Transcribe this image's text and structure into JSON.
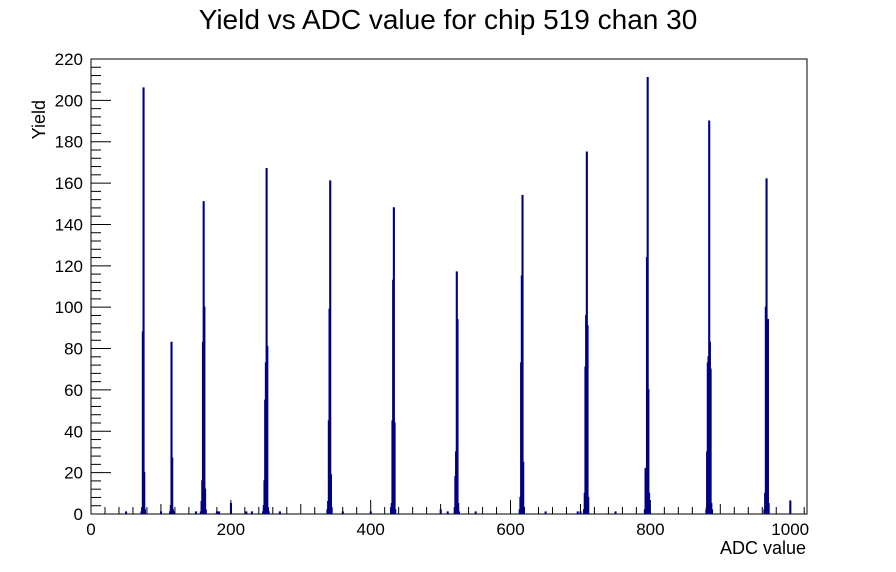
{
  "chart_data": {
    "type": "histogram",
    "title": "Yield vs ADC value for chip 519 chan 30",
    "xlabel": "ADC value",
    "ylabel": "Yield",
    "xlim": [
      0,
      1024
    ],
    "ylim": [
      0,
      220
    ],
    "x_ticks": [
      0,
      200,
      400,
      600,
      800,
      1000
    ],
    "y_ticks": [
      0,
      20,
      40,
      60,
      80,
      100,
      120,
      140,
      160,
      180,
      200,
      220
    ],
    "grid": false,
    "legend": "none",
    "line_color": "#000080",
    "bins": [
      {
        "x": 50,
        "y": 1
      },
      {
        "x": 72,
        "y": 1
      },
      {
        "x": 73,
        "y": 3
      },
      {
        "x": 74,
        "y": 88
      },
      {
        "x": 75,
        "y": 206
      },
      {
        "x": 76,
        "y": 20
      },
      {
        "x": 77,
        "y": 2
      },
      {
        "x": 100,
        "y": 1
      },
      {
        "x": 113,
        "y": 1
      },
      {
        "x": 114,
        "y": 4
      },
      {
        "x": 115,
        "y": 83
      },
      {
        "x": 116,
        "y": 27
      },
      {
        "x": 117,
        "y": 2
      },
      {
        "x": 118,
        "y": 1
      },
      {
        "x": 150,
        "y": 1
      },
      {
        "x": 157,
        "y": 1
      },
      {
        "x": 158,
        "y": 6
      },
      {
        "x": 159,
        "y": 16
      },
      {
        "x": 160,
        "y": 83
      },
      {
        "x": 161,
        "y": 151
      },
      {
        "x": 162,
        "y": 100
      },
      {
        "x": 163,
        "y": 12
      },
      {
        "x": 164,
        "y": 2
      },
      {
        "x": 180,
        "y": 1
      },
      {
        "x": 183,
        "y": 1
      },
      {
        "x": 200,
        "y": 5
      },
      {
        "x": 222,
        "y": 1
      },
      {
        "x": 230,
        "y": 1
      },
      {
        "x": 246,
        "y": 1
      },
      {
        "x": 247,
        "y": 4
      },
      {
        "x": 248,
        "y": 16
      },
      {
        "x": 249,
        "y": 55
      },
      {
        "x": 250,
        "y": 73
      },
      {
        "x": 251,
        "y": 167
      },
      {
        "x": 252,
        "y": 81
      },
      {
        "x": 253,
        "y": 3
      },
      {
        "x": 254,
        "y": 1
      },
      {
        "x": 270,
        "y": 1
      },
      {
        "x": 338,
        "y": 2
      },
      {
        "x": 339,
        "y": 6
      },
      {
        "x": 340,
        "y": 45
      },
      {
        "x": 341,
        "y": 99
      },
      {
        "x": 342,
        "y": 161
      },
      {
        "x": 343,
        "y": 19
      },
      {
        "x": 344,
        "y": 3
      },
      {
        "x": 360,
        "y": 1
      },
      {
        "x": 400,
        "y": 1
      },
      {
        "x": 429,
        "y": 3
      },
      {
        "x": 430,
        "y": 5
      },
      {
        "x": 431,
        "y": 45
      },
      {
        "x": 432,
        "y": 113
      },
      {
        "x": 433,
        "y": 148
      },
      {
        "x": 434,
        "y": 44
      },
      {
        "x": 435,
        "y": 2
      },
      {
        "x": 500,
        "y": 2
      },
      {
        "x": 510,
        "y": 1
      },
      {
        "x": 520,
        "y": 3
      },
      {
        "x": 521,
        "y": 18
      },
      {
        "x": 522,
        "y": 30
      },
      {
        "x": 523,
        "y": 117
      },
      {
        "x": 524,
        "y": 94
      },
      {
        "x": 525,
        "y": 5
      },
      {
        "x": 526,
        "y": 1
      },
      {
        "x": 550,
        "y": 1
      },
      {
        "x": 613,
        "y": 2
      },
      {
        "x": 614,
        "y": 8
      },
      {
        "x": 615,
        "y": 73
      },
      {
        "x": 616,
        "y": 115
      },
      {
        "x": 617,
        "y": 154
      },
      {
        "x": 618,
        "y": 25
      },
      {
        "x": 619,
        "y": 2
      },
      {
        "x": 650,
        "y": 1
      },
      {
        "x": 696,
        "y": 1
      },
      {
        "x": 700,
        "y": 1
      },
      {
        "x": 705,
        "y": 2
      },
      {
        "x": 706,
        "y": 10
      },
      {
        "x": 707,
        "y": 71
      },
      {
        "x": 708,
        "y": 96
      },
      {
        "x": 709,
        "y": 175
      },
      {
        "x": 710,
        "y": 91
      },
      {
        "x": 711,
        "y": 8
      },
      {
        "x": 750,
        "y": 1
      },
      {
        "x": 792,
        "y": 2
      },
      {
        "x": 793,
        "y": 22
      },
      {
        "x": 794,
        "y": 14
      },
      {
        "x": 795,
        "y": 124
      },
      {
        "x": 796,
        "y": 211
      },
      {
        "x": 797,
        "y": 60
      },
      {
        "x": 798,
        "y": 10
      },
      {
        "x": 799,
        "y": 2
      },
      {
        "x": 880,
        "y": 2
      },
      {
        "x": 881,
        "y": 30
      },
      {
        "x": 882,
        "y": 73
      },
      {
        "x": 883,
        "y": 76
      },
      {
        "x": 884,
        "y": 190
      },
      {
        "x": 885,
        "y": 83
      },
      {
        "x": 886,
        "y": 70
      },
      {
        "x": 887,
        "y": 5
      },
      {
        "x": 888,
        "y": 2
      },
      {
        "x": 963,
        "y": 2
      },
      {
        "x": 964,
        "y": 10
      },
      {
        "x": 965,
        "y": 100
      },
      {
        "x": 966,
        "y": 162
      },
      {
        "x": 967,
        "y": 81
      },
      {
        "x": 968,
        "y": 94
      },
      {
        "x": 969,
        "y": 5
      },
      {
        "x": 1000,
        "y": 6
      }
    ]
  }
}
